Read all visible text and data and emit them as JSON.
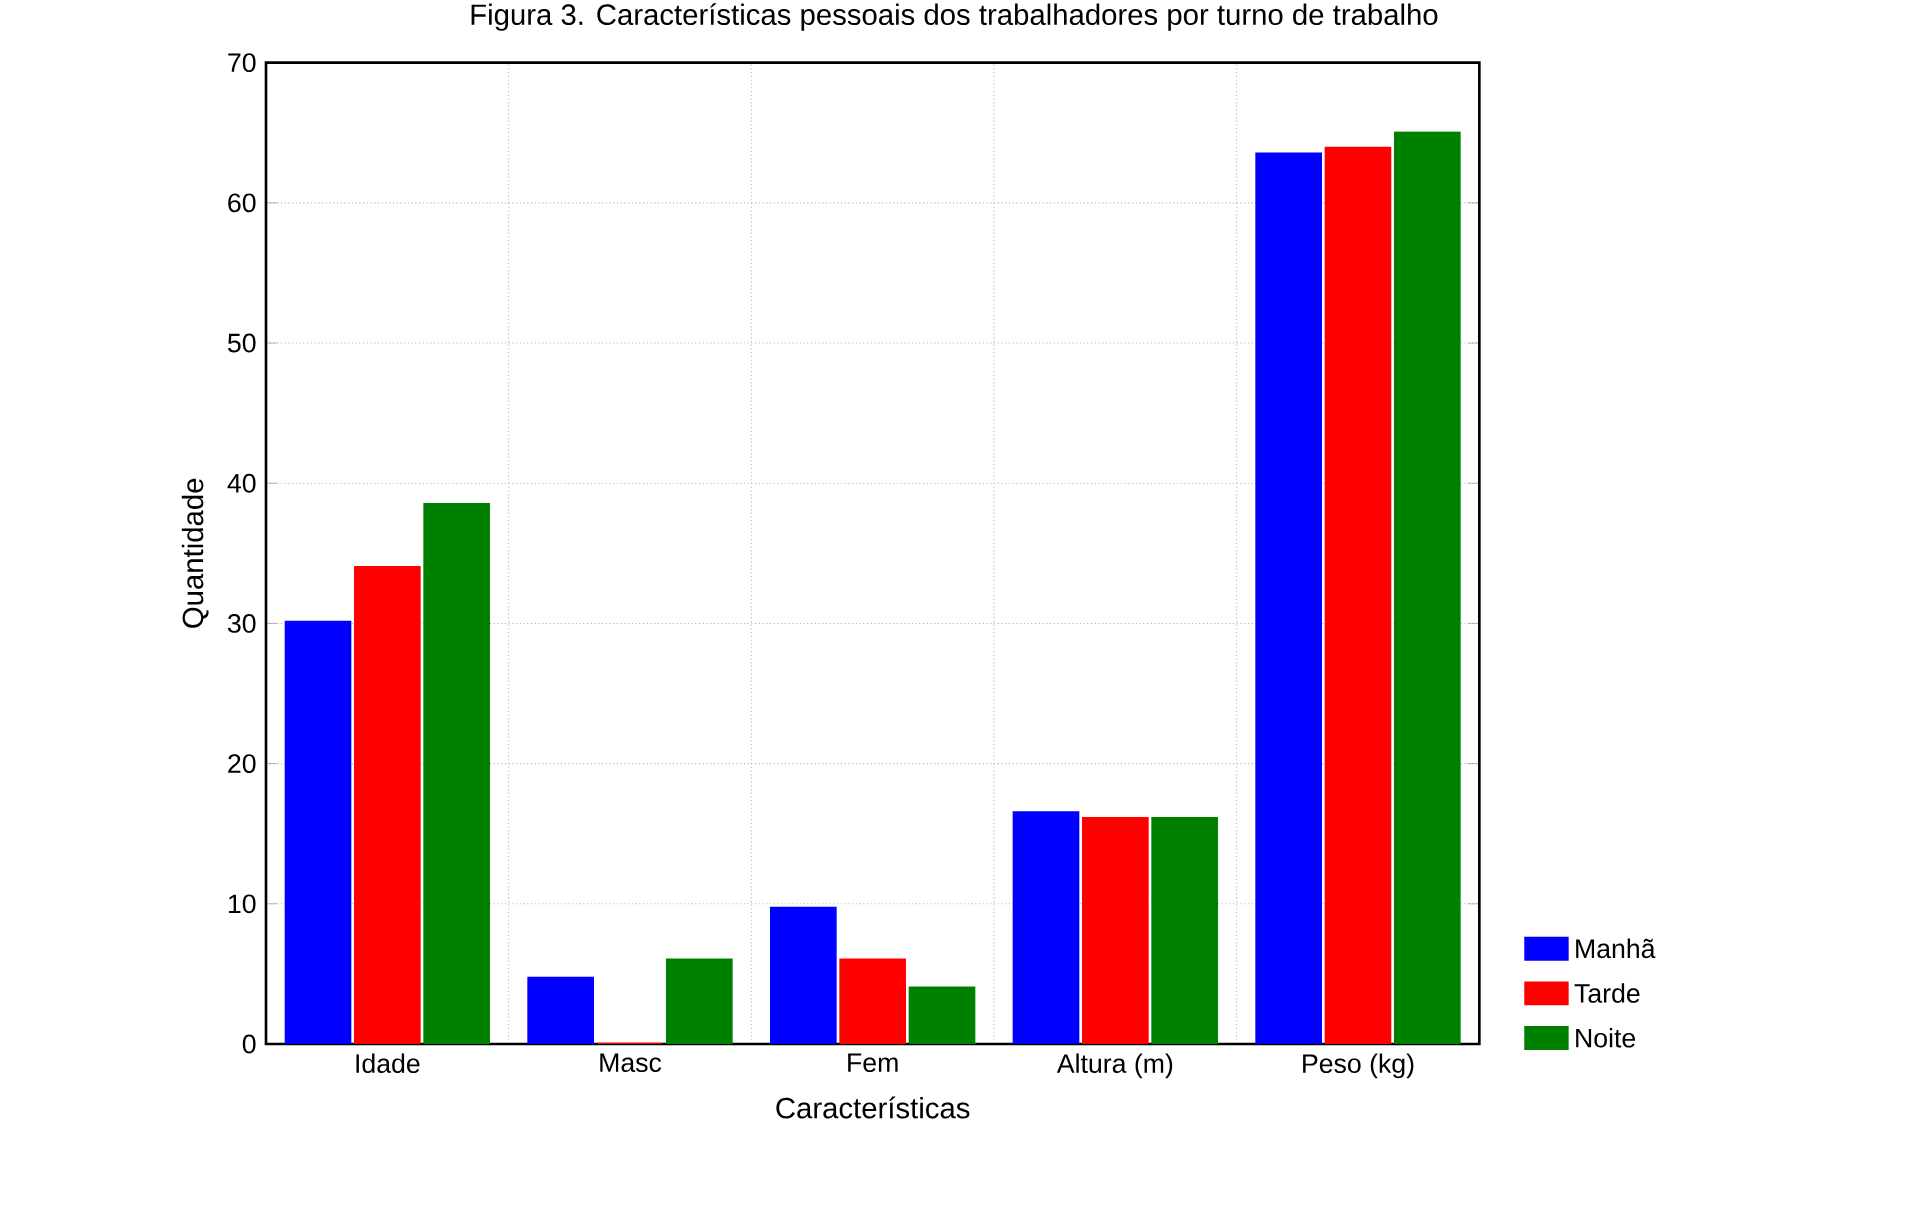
{
  "chart_data": {
    "type": "bar",
    "title": "Figura 3. Características pessoais dos trabalhadores por turno de trabalho",
    "xlabel": "Características",
    "ylabel": "Quantidade",
    "categories": [
      "Idade",
      "Masc",
      "Fem",
      "Altura (m)",
      "Peso (kg)"
    ],
    "series": [
      {
        "name": "Manhã",
        "color": "#0000ff",
        "values": [
          30.1,
          4.7,
          9.7,
          16.5,
          63.5
        ]
      },
      {
        "name": "Tarde",
        "color": "#ff0000",
        "values": [
          34.0,
          0,
          6.0,
          16.1,
          63.9
        ]
      },
      {
        "name": "Noite",
        "color": "#008000",
        "values": [
          38.5,
          6.0,
          4.0,
          16.1,
          65.0
        ]
      }
    ],
    "ylim": [
      0,
      70
    ],
    "yticks": [
      0,
      10,
      20,
      30,
      40,
      50,
      60,
      70
    ],
    "grid": true,
    "legend": "right"
  }
}
